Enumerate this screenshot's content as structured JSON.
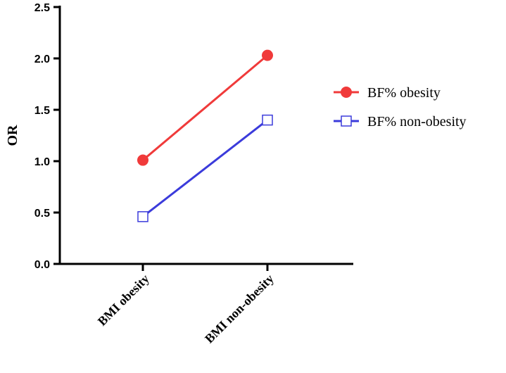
{
  "chart_data": {
    "type": "line",
    "categories": [
      "BMI obesity",
      "BMI non-obesity"
    ],
    "series": [
      {
        "name": "BF% obesity",
        "values": [
          1.01,
          2.03
        ],
        "color": "#f03a3a",
        "marker": "filled-circle"
      },
      {
        "name": "BF% non-obesity",
        "values": [
          0.46,
          1.4
        ],
        "color": "#3b3bdb",
        "marker": "open-square"
      }
    ],
    "ylabel": "OR",
    "xlabel": "",
    "ylim": [
      0,
      2.5
    ],
    "yticks": [
      "0.0",
      "0.5",
      "1.0",
      "1.5",
      "2.0",
      "2.5"
    ],
    "grid": false,
    "legend_position": "right"
  }
}
